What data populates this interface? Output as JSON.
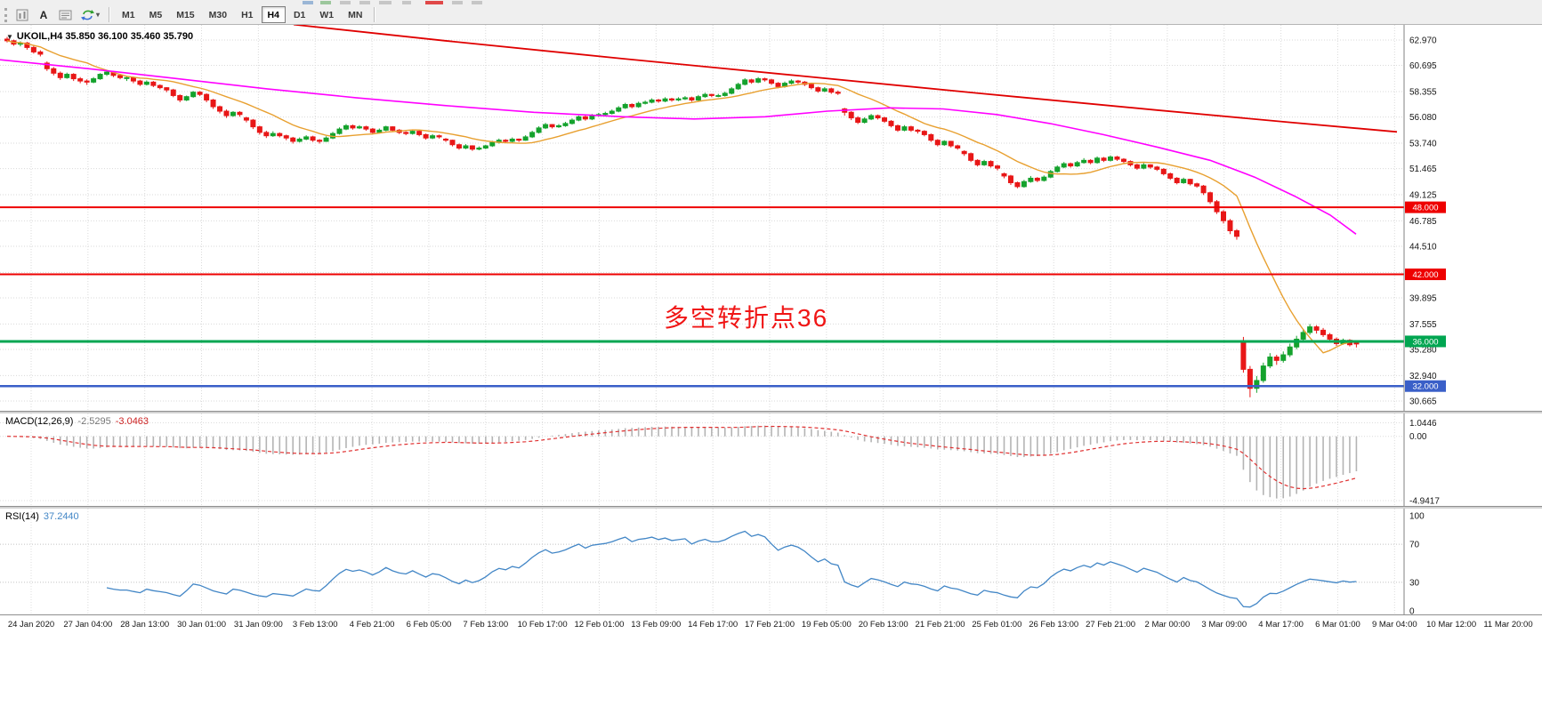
{
  "toolbar": {
    "text_tool_label": "A",
    "caret": "▾",
    "timeframes": [
      "M1",
      "M5",
      "M15",
      "M30",
      "H1",
      "H4",
      "D1",
      "W1",
      "MN"
    ],
    "active_timeframe": "H4"
  },
  "chart_data": {
    "type": "candlestick",
    "symbol": "UKOIL",
    "timeframe": "H4",
    "title": "UKOIL,H4 35.850 36.100 35.460 35.790",
    "title_marker": "▼",
    "annotation": {
      "text": "多空转折点36",
      "color": "#f01515"
    },
    "colors": {
      "up": "#15a22d",
      "down": "#e81717"
    },
    "ylim": [
      29.79,
      64.32
    ],
    "price_labels": [
      "62.970",
      "60.695",
      "58.355",
      "56.080",
      "53.740",
      "51.465",
      "49.125",
      "46.785",
      "44.510",
      "42.170",
      "39.895",
      "37.555",
      "35.280",
      "32.940",
      "30.665"
    ],
    "time_labels": [
      "24 Jan 2020",
      "27 Jan 04:00",
      "28 Jan 13:00",
      "30 Jan 01:00",
      "31 Jan 09:00",
      "3 Feb 13:00",
      "4 Feb 21:00",
      "6 Feb 05:00",
      "7 Feb 13:00",
      "10 Feb 17:00",
      "12 Feb 01:00",
      "13 Feb 09:00",
      "14 Feb 17:00",
      "17 Feb 21:00",
      "19 Feb 05:00",
      "20 Feb 13:00",
      "21 Feb 21:00",
      "25 Feb 01:00",
      "26 Feb 13:00",
      "27 Feb 21:00",
      "2 Mar 00:00",
      "3 Mar 09:00",
      "4 Mar 17:00",
      "6 Mar 01:00",
      "9 Mar 04:00",
      "10 Mar 12:00",
      "11 Mar 20:00"
    ],
    "hlines": [
      {
        "price": 48.0,
        "label": "48.000",
        "color": "#ee0000",
        "width": 2
      },
      {
        "price": 42.0,
        "label": "42.000",
        "color": "#ee0000",
        "width": 2
      },
      {
        "price": 36.0,
        "label": "36.000",
        "color": "#00a651",
        "width": 3
      },
      {
        "price": 32.0,
        "label": "32.000",
        "color": "#3a5fc8",
        "width": 2.5
      }
    ],
    "candles": [
      [
        63.05,
        63.25,
        62.75,
        62.9
      ],
      [
        62.9,
        63.0,
        62.45,
        62.6
      ],
      [
        62.6,
        62.85,
        62.4,
        62.7
      ],
      [
        62.7,
        62.8,
        62.1,
        62.3
      ],
      [
        62.3,
        62.45,
        61.75,
        61.9
      ],
      [
        61.9,
        62.05,
        61.5,
        61.7
      ],
      [
        60.9,
        61.05,
        60.2,
        60.4
      ],
      [
        60.4,
        60.55,
        59.8,
        60.0
      ],
      [
        60.0,
        60.15,
        59.4,
        59.6
      ],
      [
        59.6,
        60.05,
        59.5,
        59.9
      ],
      [
        59.9,
        60.0,
        59.3,
        59.5
      ],
      [
        59.5,
        59.65,
        59.1,
        59.3
      ],
      [
        59.3,
        59.45,
        58.95,
        59.2
      ],
      [
        59.2,
        59.65,
        59.1,
        59.5
      ],
      [
        59.5,
        60.0,
        59.4,
        59.9
      ],
      [
        59.9,
        60.2,
        59.75,
        60.1
      ],
      [
        60.1,
        60.2,
        59.65,
        59.8
      ],
      [
        59.8,
        59.95,
        59.45,
        59.6
      ],
      [
        59.6,
        59.75,
        59.3,
        59.6
      ],
      [
        59.6,
        59.7,
        59.1,
        59.3
      ],
      [
        59.3,
        59.4,
        58.85,
        59.0
      ],
      [
        59.0,
        59.35,
        58.9,
        59.2
      ],
      [
        59.2,
        59.3,
        58.75,
        58.9
      ],
      [
        58.9,
        59.0,
        58.55,
        58.7
      ],
      [
        58.7,
        58.75,
        58.3,
        58.5
      ],
      [
        58.5,
        58.6,
        57.85,
        58.0
      ],
      [
        58.0,
        58.1,
        57.4,
        57.6
      ],
      [
        57.6,
        58.0,
        57.5,
        57.9
      ],
      [
        57.9,
        58.4,
        57.8,
        58.3
      ],
      [
        58.3,
        58.4,
        57.95,
        58.1
      ],
      [
        58.1,
        58.2,
        57.4,
        57.6
      ],
      [
        57.6,
        57.7,
        56.8,
        57.0
      ],
      [
        57.0,
        57.1,
        56.4,
        56.6
      ],
      [
        56.6,
        56.75,
        56.0,
        56.2
      ],
      [
        56.2,
        56.6,
        56.1,
        56.5
      ],
      [
        56.5,
        56.6,
        56.1,
        56.3
      ],
      [
        56.0,
        56.1,
        55.6,
        55.8
      ],
      [
        55.8,
        55.9,
        55.0,
        55.2
      ],
      [
        55.2,
        55.3,
        54.5,
        54.7
      ],
      [
        54.7,
        54.85,
        54.2,
        54.4
      ],
      [
        54.4,
        54.8,
        54.3,
        54.6
      ],
      [
        54.6,
        54.7,
        54.25,
        54.4
      ],
      [
        54.4,
        54.5,
        54.0,
        54.2
      ],
      [
        54.2,
        54.3,
        53.7,
        53.9
      ],
      [
        53.9,
        54.25,
        53.8,
        54.1
      ],
      [
        54.1,
        54.45,
        54.0,
        54.3
      ],
      [
        54.3,
        54.4,
        53.85,
        54.0
      ],
      [
        54.0,
        54.1,
        53.7,
        53.9
      ],
      [
        53.9,
        54.35,
        53.85,
        54.2
      ],
      [
        54.2,
        54.75,
        54.1,
        54.6
      ],
      [
        54.6,
        55.15,
        54.5,
        55.0
      ],
      [
        55.0,
        55.45,
        54.9,
        55.3
      ],
      [
        55.3,
        55.4,
        54.95,
        55.1
      ],
      [
        55.1,
        55.35,
        55.0,
        55.2
      ],
      [
        55.2,
        55.3,
        54.85,
        55.0
      ],
      [
        55.0,
        55.1,
        54.55,
        54.7
      ],
      [
        54.7,
        55.05,
        54.6,
        54.9
      ],
      [
        54.9,
        55.3,
        54.8,
        55.2
      ],
      [
        55.2,
        55.25,
        54.75,
        54.9
      ],
      [
        54.9,
        55.0,
        54.55,
        54.7
      ],
      [
        54.7,
        54.8,
        54.45,
        54.6
      ],
      [
        54.6,
        54.95,
        54.5,
        54.8
      ],
      [
        54.8,
        54.9,
        54.35,
        54.5
      ],
      [
        54.5,
        54.6,
        54.05,
        54.2
      ],
      [
        54.2,
        54.55,
        54.1,
        54.4
      ],
      [
        54.4,
        54.5,
        54.15,
        54.3
      ],
      [
        54.1,
        54.2,
        53.85,
        54.0
      ],
      [
        54.0,
        54.05,
        53.45,
        53.6
      ],
      [
        53.6,
        53.7,
        53.15,
        53.3
      ],
      [
        53.3,
        53.65,
        53.2,
        53.5
      ],
      [
        53.5,
        53.55,
        53.05,
        53.2
      ],
      [
        53.2,
        53.45,
        53.1,
        53.3
      ],
      [
        53.3,
        53.6,
        53.2,
        53.5
      ],
      [
        53.5,
        53.95,
        53.4,
        53.8
      ],
      [
        53.8,
        54.15,
        53.7,
        54.0
      ],
      [
        54.0,
        54.1,
        53.75,
        53.9
      ],
      [
        53.9,
        54.25,
        53.8,
        54.1
      ],
      [
        54.1,
        54.15,
        53.85,
        54.0
      ],
      [
        54.0,
        54.45,
        53.95,
        54.3
      ],
      [
        54.3,
        54.85,
        54.2,
        54.7
      ],
      [
        54.7,
        55.25,
        54.6,
        55.1
      ],
      [
        55.1,
        55.55,
        55.0,
        55.4
      ],
      [
        55.4,
        55.45,
        55.05,
        55.2
      ],
      [
        55.2,
        55.45,
        55.1,
        55.3
      ],
      [
        55.3,
        55.65,
        55.2,
        55.5
      ],
      [
        55.5,
        55.95,
        55.4,
        55.8
      ],
      [
        55.8,
        56.2,
        55.7,
        56.1
      ],
      [
        56.1,
        56.2,
        55.75,
        55.9
      ],
      [
        55.9,
        56.35,
        55.8,
        56.2
      ],
      [
        56.2,
        56.45,
        56.1,
        56.3
      ],
      [
        56.3,
        56.55,
        56.2,
        56.4
      ],
      [
        56.4,
        56.75,
        56.3,
        56.6
      ],
      [
        56.6,
        57.05,
        56.5,
        56.9
      ],
      [
        56.9,
        57.35,
        56.8,
        57.2
      ],
      [
        57.2,
        57.3,
        56.85,
        57.0
      ],
      [
        57.0,
        57.45,
        56.9,
        57.3
      ],
      [
        57.3,
        57.55,
        57.2,
        57.4
      ],
      [
        57.4,
        57.75,
        57.3,
        57.6
      ],
      [
        57.6,
        57.7,
        57.35,
        57.5
      ],
      [
        57.5,
        57.85,
        57.4,
        57.7
      ],
      [
        57.7,
        57.8,
        57.45,
        57.6
      ],
      [
        57.6,
        57.85,
        57.5,
        57.7
      ],
      [
        57.7,
        57.95,
        57.6,
        57.8
      ],
      [
        57.8,
        57.9,
        57.45,
        57.6
      ],
      [
        57.6,
        58.05,
        57.5,
        57.9
      ],
      [
        57.9,
        58.25,
        57.8,
        58.1
      ],
      [
        58.1,
        58.15,
        57.85,
        58.0
      ],
      [
        58.0,
        58.15,
        57.85,
        58.0
      ],
      [
        58.0,
        58.35,
        57.9,
        58.2
      ],
      [
        58.2,
        58.75,
        58.1,
        58.6
      ],
      [
        58.6,
        59.15,
        58.5,
        59.0
      ],
      [
        59.0,
        59.55,
        58.9,
        59.4
      ],
      [
        59.4,
        59.5,
        59.05,
        59.2
      ],
      [
        59.2,
        59.65,
        59.1,
        59.5
      ],
      [
        59.5,
        59.6,
        59.25,
        59.4
      ],
      [
        59.4,
        59.5,
        58.95,
        59.1
      ],
      [
        59.1,
        59.2,
        58.65,
        58.8
      ],
      [
        58.8,
        59.25,
        58.7,
        59.1
      ],
      [
        59.1,
        59.45,
        59.0,
        59.3
      ],
      [
        59.3,
        59.4,
        59.05,
        59.2
      ],
      [
        59.2,
        59.3,
        58.85,
        59.0
      ],
      [
        59.0,
        59.1,
        58.55,
        58.7
      ],
      [
        58.7,
        58.8,
        58.25,
        58.4
      ],
      [
        58.4,
        58.75,
        58.3,
        58.6
      ],
      [
        58.6,
        58.7,
        58.15,
        58.3
      ],
      [
        58.3,
        58.45,
        58.05,
        58.2
      ],
      [
        56.8,
        56.9,
        56.2,
        56.5
      ],
      [
        56.5,
        56.6,
        55.8,
        56.0
      ],
      [
        56.0,
        56.15,
        55.45,
        55.6
      ],
      [
        55.6,
        56.05,
        55.5,
        55.9
      ],
      [
        55.9,
        56.35,
        55.8,
        56.2
      ],
      [
        56.2,
        56.3,
        55.85,
        56.0
      ],
      [
        56.0,
        56.1,
        55.55,
        55.7
      ],
      [
        55.7,
        55.8,
        55.15,
        55.3
      ],
      [
        55.3,
        55.4,
        54.75,
        54.9
      ],
      [
        54.9,
        55.35,
        54.8,
        55.2
      ],
      [
        55.2,
        55.3,
        54.75,
        54.9
      ],
      [
        54.9,
        55.0,
        54.6,
        54.8
      ],
      [
        54.8,
        54.9,
        54.35,
        54.5
      ],
      [
        54.5,
        54.6,
        53.85,
        54.0
      ],
      [
        54.0,
        54.1,
        53.45,
        53.6
      ],
      [
        53.6,
        54.0,
        53.5,
        53.9
      ],
      [
        53.9,
        53.95,
        53.35,
        53.5
      ],
      [
        53.5,
        53.6,
        53.15,
        53.3
      ],
      [
        53.0,
        53.1,
        52.6,
        52.8
      ],
      [
        52.8,
        52.9,
        52.05,
        52.2
      ],
      [
        52.2,
        52.3,
        51.65,
        51.8
      ],
      [
        51.8,
        52.25,
        51.7,
        52.1
      ],
      [
        52.1,
        52.2,
        51.55,
        51.7
      ],
      [
        51.7,
        51.8,
        51.3,
        51.5
      ],
      [
        51.0,
        51.1,
        50.6,
        50.8
      ],
      [
        50.8,
        50.9,
        50.0,
        50.2
      ],
      [
        50.2,
        50.3,
        49.7,
        49.85
      ],
      [
        49.85,
        50.45,
        49.75,
        50.3
      ],
      [
        50.3,
        50.8,
        50.2,
        50.6
      ],
      [
        50.6,
        50.7,
        50.25,
        50.4
      ],
      [
        50.4,
        50.85,
        50.3,
        50.7
      ],
      [
        50.7,
        51.35,
        50.6,
        51.2
      ],
      [
        51.2,
        51.75,
        51.1,
        51.6
      ],
      [
        51.6,
        52.05,
        51.5,
        51.9
      ],
      [
        51.9,
        52.0,
        51.55,
        51.7
      ],
      [
        51.7,
        52.15,
        51.6,
        52.0
      ],
      [
        52.0,
        52.4,
        51.9,
        52.2
      ],
      [
        52.2,
        52.3,
        51.85,
        52.0
      ],
      [
        52.0,
        52.55,
        51.9,
        52.4
      ],
      [
        52.4,
        52.5,
        52.05,
        52.2
      ],
      [
        52.2,
        52.65,
        52.1,
        52.5
      ],
      [
        52.5,
        52.6,
        52.15,
        52.3
      ],
      [
        52.3,
        52.4,
        51.95,
        52.1
      ],
      [
        52.1,
        52.2,
        51.65,
        51.8
      ],
      [
        51.8,
        51.9,
        51.35,
        51.5
      ],
      [
        51.5,
        51.95,
        51.4,
        51.8
      ],
      [
        51.8,
        51.85,
        51.45,
        51.6
      ],
      [
        51.6,
        51.7,
        51.25,
        51.4
      ],
      [
        51.4,
        51.5,
        50.85,
        51.0
      ],
      [
        51.0,
        51.1,
        50.45,
        50.6
      ],
      [
        50.6,
        50.7,
        50.05,
        50.2
      ],
      [
        50.2,
        50.65,
        50.1,
        50.5
      ],
      [
        50.5,
        50.55,
        49.95,
        50.1
      ],
      [
        50.1,
        50.2,
        49.75,
        49.9
      ],
      [
        49.9,
        50.0,
        49.1,
        49.3
      ],
      [
        49.3,
        49.4,
        48.3,
        48.5
      ],
      [
        48.5,
        48.65,
        47.4,
        47.6
      ],
      [
        47.6,
        47.75,
        46.55,
        46.8
      ],
      [
        46.8,
        46.95,
        45.6,
        45.9
      ],
      [
        45.9,
        46.05,
        45.1,
        45.4
      ],
      [
        36.0,
        36.4,
        33.2,
        33.5
      ],
      [
        33.5,
        33.8,
        31.0,
        31.8
      ],
      [
        31.8,
        32.9,
        31.4,
        32.5
      ],
      [
        32.5,
        34.1,
        32.3,
        33.8
      ],
      [
        33.8,
        34.95,
        33.6,
        34.6
      ],
      [
        34.6,
        34.8,
        33.9,
        34.3
      ],
      [
        34.3,
        35.1,
        34.1,
        34.8
      ],
      [
        34.8,
        35.8,
        34.6,
        35.5
      ],
      [
        35.5,
        36.5,
        35.3,
        36.2
      ],
      [
        36.2,
        37.1,
        36.0,
        36.8
      ],
      [
        36.8,
        37.55,
        36.6,
        37.3
      ],
      [
        37.3,
        37.45,
        36.7,
        37.0
      ],
      [
        37.0,
        37.2,
        36.4,
        36.6
      ],
      [
        36.6,
        36.75,
        36.0,
        36.2
      ],
      [
        36.2,
        36.35,
        35.6,
        35.8
      ],
      [
        35.8,
        36.25,
        35.7,
        36.1
      ],
      [
        36.1,
        36.2,
        35.55,
        35.7
      ],
      [
        35.85,
        36.1,
        35.46,
        35.79
      ]
    ],
    "moving_averages": {
      "fast": {
        "period": 13,
        "color": "#e8a030"
      },
      "mid": {
        "color": "#ff00ff",
        "points": [
          [
            0,
            61.2
          ],
          [
            100,
            60.4
          ],
          [
            200,
            59.5
          ],
          [
            300,
            58.6
          ],
          [
            400,
            57.8
          ],
          [
            500,
            57.1
          ],
          [
            600,
            56.5
          ],
          [
            700,
            56.1
          ],
          [
            780,
            55.9
          ],
          [
            860,
            56.1
          ],
          [
            930,
            56.6
          ],
          [
            1000,
            56.9
          ],
          [
            1060,
            56.8
          ],
          [
            1120,
            56.3
          ],
          [
            1180,
            55.5
          ],
          [
            1240,
            54.5
          ],
          [
            1300,
            53.4
          ],
          [
            1360,
            52.2
          ],
          [
            1410,
            50.7
          ],
          [
            1455,
            49.0
          ],
          [
            1495,
            47.3
          ],
          [
            1524,
            45.6
          ]
        ]
      },
      "slow": {
        "color": "#e00000",
        "points": [
          [
            330,
            64.35
          ],
          [
            500,
            62.9
          ],
          [
            700,
            61.3
          ],
          [
            900,
            59.75
          ],
          [
            1100,
            58.2
          ],
          [
            1300,
            56.7
          ],
          [
            1450,
            55.6
          ],
          [
            1570,
            54.75
          ]
        ]
      }
    },
    "macd": {
      "label": "MACD(12,26,9)",
      "value_main": "-2.5295",
      "value_signal": "-3.0463",
      "fast": 12,
      "slow": 26,
      "signal": 9,
      "ylim": [
        -5.35,
        1.76
      ],
      "axis_labels": [
        "1.0446",
        "0.00",
        "-4.9417"
      ],
      "hist_color": "#b4b4b4",
      "signal_color": "#e03030"
    },
    "rsi": {
      "label": "RSI(14)",
      "value": "37.2440",
      "period": 14,
      "levels": [
        70,
        30
      ],
      "axis_labels": [
        "100",
        "70",
        "30",
        "0"
      ],
      "color": "#4286c6",
      "ylim": [
        0,
        100
      ]
    }
  }
}
